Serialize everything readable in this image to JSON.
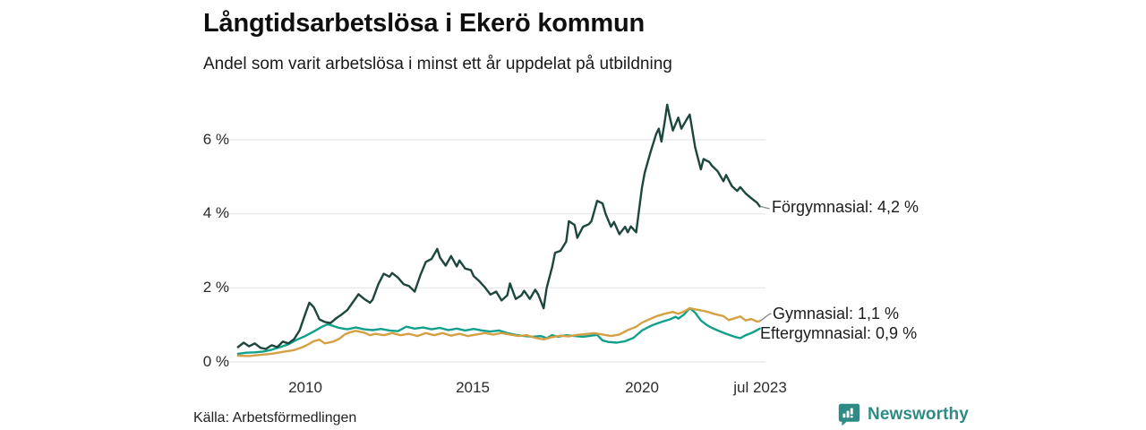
{
  "header": {
    "title": "Långtidsarbetslösa i Ekerö kommun",
    "subtitle": "Andel som varit arbetslösa i minst ett år uppdelat på utbildning"
  },
  "axes": {
    "x": {
      "range_years": [
        2008,
        2023.5
      ],
      "ticks": [
        {
          "year": 2010,
          "label": "2010"
        },
        {
          "year": 2015,
          "label": "2015"
        },
        {
          "year": 2020,
          "label": "2020"
        },
        {
          "year": 2023.5,
          "label": "jul 2023"
        }
      ]
    },
    "y": {
      "range_pct": [
        0,
        7.2
      ],
      "unit": "%",
      "ticks": [
        {
          "value": 0,
          "label": "0 %"
        },
        {
          "value": 2,
          "label": "2 %"
        },
        {
          "value": 4,
          "label": "4 %"
        },
        {
          "value": 6,
          "label": "6 %"
        }
      ]
    }
  },
  "chart_data": {
    "type": "line",
    "title": "Långtidsarbetslösa i Ekerö kommun",
    "subtitle": "Andel som varit arbetslösa i minst ett år uppdelat på utbildning",
    "xlabel": "",
    "ylabel": "",
    "x_unit": "decimal year (monthly share of long-term unemployed)",
    "xlim": [
      2008,
      2023.5
    ],
    "ylim": [
      0,
      7.2
    ],
    "grid": "horizontal",
    "legend_position": "end-of-line labels at right",
    "series": [
      {
        "name": "Förgymnasial",
        "color": "#1d463e",
        "end_label": "Förgymnasial: 4,2 %",
        "latest_value_pct": 4.2,
        "points": [
          [
            2008.0,
            0.4
          ],
          [
            2008.17,
            0.52
          ],
          [
            2008.33,
            0.42
          ],
          [
            2008.5,
            0.5
          ],
          [
            2008.67,
            0.38
          ],
          [
            2008.83,
            0.35
          ],
          [
            2009.0,
            0.45
          ],
          [
            2009.17,
            0.4
          ],
          [
            2009.33,
            0.55
          ],
          [
            2009.5,
            0.5
          ],
          [
            2009.67,
            0.62
          ],
          [
            2009.83,
            0.85
          ],
          [
            2010.0,
            1.3
          ],
          [
            2010.12,
            1.6
          ],
          [
            2010.25,
            1.48
          ],
          [
            2010.42,
            1.15
          ],
          [
            2010.58,
            1.08
          ],
          [
            2010.75,
            1.05
          ],
          [
            2010.92,
            1.18
          ],
          [
            2011.08,
            1.28
          ],
          [
            2011.25,
            1.4
          ],
          [
            2011.42,
            1.62
          ],
          [
            2011.58,
            1.83
          ],
          [
            2011.75,
            1.7
          ],
          [
            2011.92,
            1.6
          ],
          [
            2012.0,
            1.68
          ],
          [
            2012.17,
            2.1
          ],
          [
            2012.33,
            2.38
          ],
          [
            2012.5,
            2.3
          ],
          [
            2012.58,
            2.4
          ],
          [
            2012.75,
            2.28
          ],
          [
            2012.92,
            2.1
          ],
          [
            2013.08,
            2.05
          ],
          [
            2013.25,
            1.9
          ],
          [
            2013.42,
            2.35
          ],
          [
            2013.58,
            2.7
          ],
          [
            2013.75,
            2.78
          ],
          [
            2013.92,
            3.05
          ],
          [
            2014.0,
            2.82
          ],
          [
            2014.17,
            2.6
          ],
          [
            2014.33,
            2.86
          ],
          [
            2014.5,
            2.58
          ],
          [
            2014.58,
            2.74
          ],
          [
            2014.75,
            2.52
          ],
          [
            2014.92,
            2.48
          ],
          [
            2015.0,
            2.32
          ],
          [
            2015.17,
            2.18
          ],
          [
            2015.33,
            2.02
          ],
          [
            2015.5,
            1.82
          ],
          [
            2015.67,
            1.9
          ],
          [
            2015.83,
            1.66
          ],
          [
            2016.0,
            1.8
          ],
          [
            2016.08,
            2.12
          ],
          [
            2016.25,
            1.7
          ],
          [
            2016.42,
            1.8
          ],
          [
            2016.5,
            1.92
          ],
          [
            2016.67,
            1.7
          ],
          [
            2016.83,
            1.95
          ],
          [
            2016.92,
            1.82
          ],
          [
            2017.08,
            1.45
          ],
          [
            2017.17,
            2.0
          ],
          [
            2017.33,
            2.55
          ],
          [
            2017.42,
            2.95
          ],
          [
            2017.58,
            3.0
          ],
          [
            2017.75,
            3.25
          ],
          [
            2017.83,
            3.8
          ],
          [
            2018.0,
            3.7
          ],
          [
            2018.08,
            3.35
          ],
          [
            2018.25,
            3.65
          ],
          [
            2018.42,
            3.72
          ],
          [
            2018.5,
            3.8
          ],
          [
            2018.67,
            4.35
          ],
          [
            2018.83,
            4.28
          ],
          [
            2018.92,
            4.0
          ],
          [
            2019.08,
            3.65
          ],
          [
            2019.17,
            3.78
          ],
          [
            2019.33,
            3.45
          ],
          [
            2019.5,
            3.65
          ],
          [
            2019.58,
            3.5
          ],
          [
            2019.67,
            3.66
          ],
          [
            2019.83,
            3.5
          ],
          [
            2019.92,
            4.15
          ],
          [
            2020.0,
            4.7
          ],
          [
            2020.08,
            5.1
          ],
          [
            2020.25,
            5.65
          ],
          [
            2020.42,
            6.15
          ],
          [
            2020.5,
            6.3
          ],
          [
            2020.58,
            5.95
          ],
          [
            2020.67,
            6.45
          ],
          [
            2020.75,
            6.95
          ],
          [
            2020.83,
            6.6
          ],
          [
            2020.92,
            6.25
          ],
          [
            2021.08,
            6.6
          ],
          [
            2021.17,
            6.3
          ],
          [
            2021.33,
            6.55
          ],
          [
            2021.42,
            6.68
          ],
          [
            2021.58,
            5.8
          ],
          [
            2021.75,
            5.2
          ],
          [
            2021.83,
            5.48
          ],
          [
            2022.0,
            5.4
          ],
          [
            2022.08,
            5.3
          ],
          [
            2022.25,
            5.15
          ],
          [
            2022.42,
            4.88
          ],
          [
            2022.5,
            5.05
          ],
          [
            2022.67,
            4.75
          ],
          [
            2022.83,
            4.62
          ],
          [
            2022.92,
            4.72
          ],
          [
            2023.08,
            4.55
          ],
          [
            2023.25,
            4.42
          ],
          [
            2023.42,
            4.3
          ],
          [
            2023.5,
            4.2
          ]
        ]
      },
      {
        "name": "Gymnasial",
        "color": "#d5a043",
        "end_label": "Gymnasial: 1,1 %",
        "latest_value_pct": 1.1,
        "points": [
          [
            2008.0,
            0.17
          ],
          [
            2008.33,
            0.16
          ],
          [
            2008.67,
            0.19
          ],
          [
            2009.0,
            0.22
          ],
          [
            2009.33,
            0.27
          ],
          [
            2009.67,
            0.32
          ],
          [
            2009.92,
            0.4
          ],
          [
            2010.08,
            0.47
          ],
          [
            2010.25,
            0.56
          ],
          [
            2010.42,
            0.6
          ],
          [
            2010.58,
            0.5
          ],
          [
            2010.83,
            0.55
          ],
          [
            2011.0,
            0.62
          ],
          [
            2011.17,
            0.74
          ],
          [
            2011.33,
            0.8
          ],
          [
            2011.5,
            0.84
          ],
          [
            2011.75,
            0.79
          ],
          [
            2011.92,
            0.72
          ],
          [
            2012.08,
            0.76
          ],
          [
            2012.33,
            0.72
          ],
          [
            2012.58,
            0.78
          ],
          [
            2012.83,
            0.72
          ],
          [
            2013.08,
            0.76
          ],
          [
            2013.33,
            0.7
          ],
          [
            2013.58,
            0.78
          ],
          [
            2013.83,
            0.72
          ],
          [
            2014.08,
            0.78
          ],
          [
            2014.33,
            0.71
          ],
          [
            2014.58,
            0.76
          ],
          [
            2014.83,
            0.7
          ],
          [
            2015.08,
            0.74
          ],
          [
            2015.33,
            0.78
          ],
          [
            2015.58,
            0.74
          ],
          [
            2015.83,
            0.78
          ],
          [
            2016.08,
            0.74
          ],
          [
            2016.33,
            0.7
          ],
          [
            2016.58,
            0.72
          ],
          [
            2016.83,
            0.65
          ],
          [
            2017.08,
            0.61
          ],
          [
            2017.33,
            0.67
          ],
          [
            2017.58,
            0.71
          ],
          [
            2017.83,
            0.69
          ],
          [
            2018.08,
            0.73
          ],
          [
            2018.33,
            0.75
          ],
          [
            2018.58,
            0.78
          ],
          [
            2018.83,
            0.74
          ],
          [
            2019.08,
            0.7
          ],
          [
            2019.33,
            0.74
          ],
          [
            2019.58,
            0.86
          ],
          [
            2019.83,
            0.95
          ],
          [
            2020.0,
            1.06
          ],
          [
            2020.17,
            1.13
          ],
          [
            2020.42,
            1.23
          ],
          [
            2020.67,
            1.3
          ],
          [
            2020.92,
            1.35
          ],
          [
            2021.08,
            1.3
          ],
          [
            2021.25,
            1.36
          ],
          [
            2021.42,
            1.45
          ],
          [
            2021.58,
            1.42
          ],
          [
            2021.83,
            1.38
          ],
          [
            2022.0,
            1.34
          ],
          [
            2022.17,
            1.29
          ],
          [
            2022.42,
            1.24
          ],
          [
            2022.58,
            1.13
          ],
          [
            2022.83,
            1.2
          ],
          [
            2022.92,
            1.23
          ],
          [
            2023.08,
            1.12
          ],
          [
            2023.25,
            1.16
          ],
          [
            2023.42,
            1.09
          ],
          [
            2023.5,
            1.1
          ]
        ]
      },
      {
        "name": "Eftergymnasial",
        "color": "#10a08c",
        "end_label": "Eftergymnasial: 0,9 %",
        "latest_value_pct": 0.9,
        "points": [
          [
            2008.0,
            0.22
          ],
          [
            2008.25,
            0.25
          ],
          [
            2008.5,
            0.26
          ],
          [
            2008.75,
            0.28
          ],
          [
            2009.0,
            0.33
          ],
          [
            2009.25,
            0.4
          ],
          [
            2009.5,
            0.48
          ],
          [
            2009.75,
            0.6
          ],
          [
            2010.0,
            0.7
          ],
          [
            2010.25,
            0.82
          ],
          [
            2010.5,
            0.95
          ],
          [
            2010.67,
            1.02
          ],
          [
            2010.83,
            0.97
          ],
          [
            2011.0,
            0.92
          ],
          [
            2011.25,
            0.88
          ],
          [
            2011.5,
            0.93
          ],
          [
            2011.75,
            0.88
          ],
          [
            2012.0,
            0.86
          ],
          [
            2012.25,
            0.89
          ],
          [
            2012.5,
            0.85
          ],
          [
            2012.75,
            0.83
          ],
          [
            2013.0,
            0.95
          ],
          [
            2013.25,
            0.9
          ],
          [
            2013.5,
            0.93
          ],
          [
            2013.75,
            0.88
          ],
          [
            2014.0,
            0.92
          ],
          [
            2014.25,
            0.86
          ],
          [
            2014.5,
            0.9
          ],
          [
            2014.75,
            0.85
          ],
          [
            2015.0,
            0.89
          ],
          [
            2015.25,
            0.85
          ],
          [
            2015.5,
            0.82
          ],
          [
            2015.75,
            0.85
          ],
          [
            2016.0,
            0.78
          ],
          [
            2016.25,
            0.73
          ],
          [
            2016.5,
            0.7
          ],
          [
            2016.75,
            0.68
          ],
          [
            2017.0,
            0.7
          ],
          [
            2017.17,
            0.64
          ],
          [
            2017.33,
            0.72
          ],
          [
            2017.5,
            0.68
          ],
          [
            2017.75,
            0.72
          ],
          [
            2018.0,
            0.7
          ],
          [
            2018.25,
            0.68
          ],
          [
            2018.5,
            0.71
          ],
          [
            2018.67,
            0.73
          ],
          [
            2018.83,
            0.58
          ],
          [
            2019.0,
            0.54
          ],
          [
            2019.25,
            0.52
          ],
          [
            2019.5,
            0.56
          ],
          [
            2019.75,
            0.65
          ],
          [
            2020.0,
            0.85
          ],
          [
            2020.17,
            0.93
          ],
          [
            2020.33,
            1.0
          ],
          [
            2020.58,
            1.08
          ],
          [
            2020.83,
            1.15
          ],
          [
            2021.0,
            1.22
          ],
          [
            2021.08,
            1.17
          ],
          [
            2021.25,
            1.28
          ],
          [
            2021.42,
            1.45
          ],
          [
            2021.58,
            1.33
          ],
          [
            2021.75,
            1.12
          ],
          [
            2021.92,
            1.0
          ],
          [
            2022.08,
            0.92
          ],
          [
            2022.25,
            0.85
          ],
          [
            2022.5,
            0.76
          ],
          [
            2022.75,
            0.68
          ],
          [
            2022.92,
            0.64
          ],
          [
            2023.08,
            0.72
          ],
          [
            2023.25,
            0.78
          ],
          [
            2023.42,
            0.86
          ],
          [
            2023.5,
            0.9
          ]
        ]
      }
    ]
  },
  "footer": {
    "source": "Källa: Arbetsförmedlingen",
    "brand": "Newsworthy"
  },
  "colors": {
    "background": "#ffffff",
    "gridline": "#e2e2e8",
    "axis_text": "#2a2a2a",
    "title_text": "#0f0f0f",
    "brand_teal": "#2e8b85",
    "connector_gray": "#8b8b8b"
  }
}
